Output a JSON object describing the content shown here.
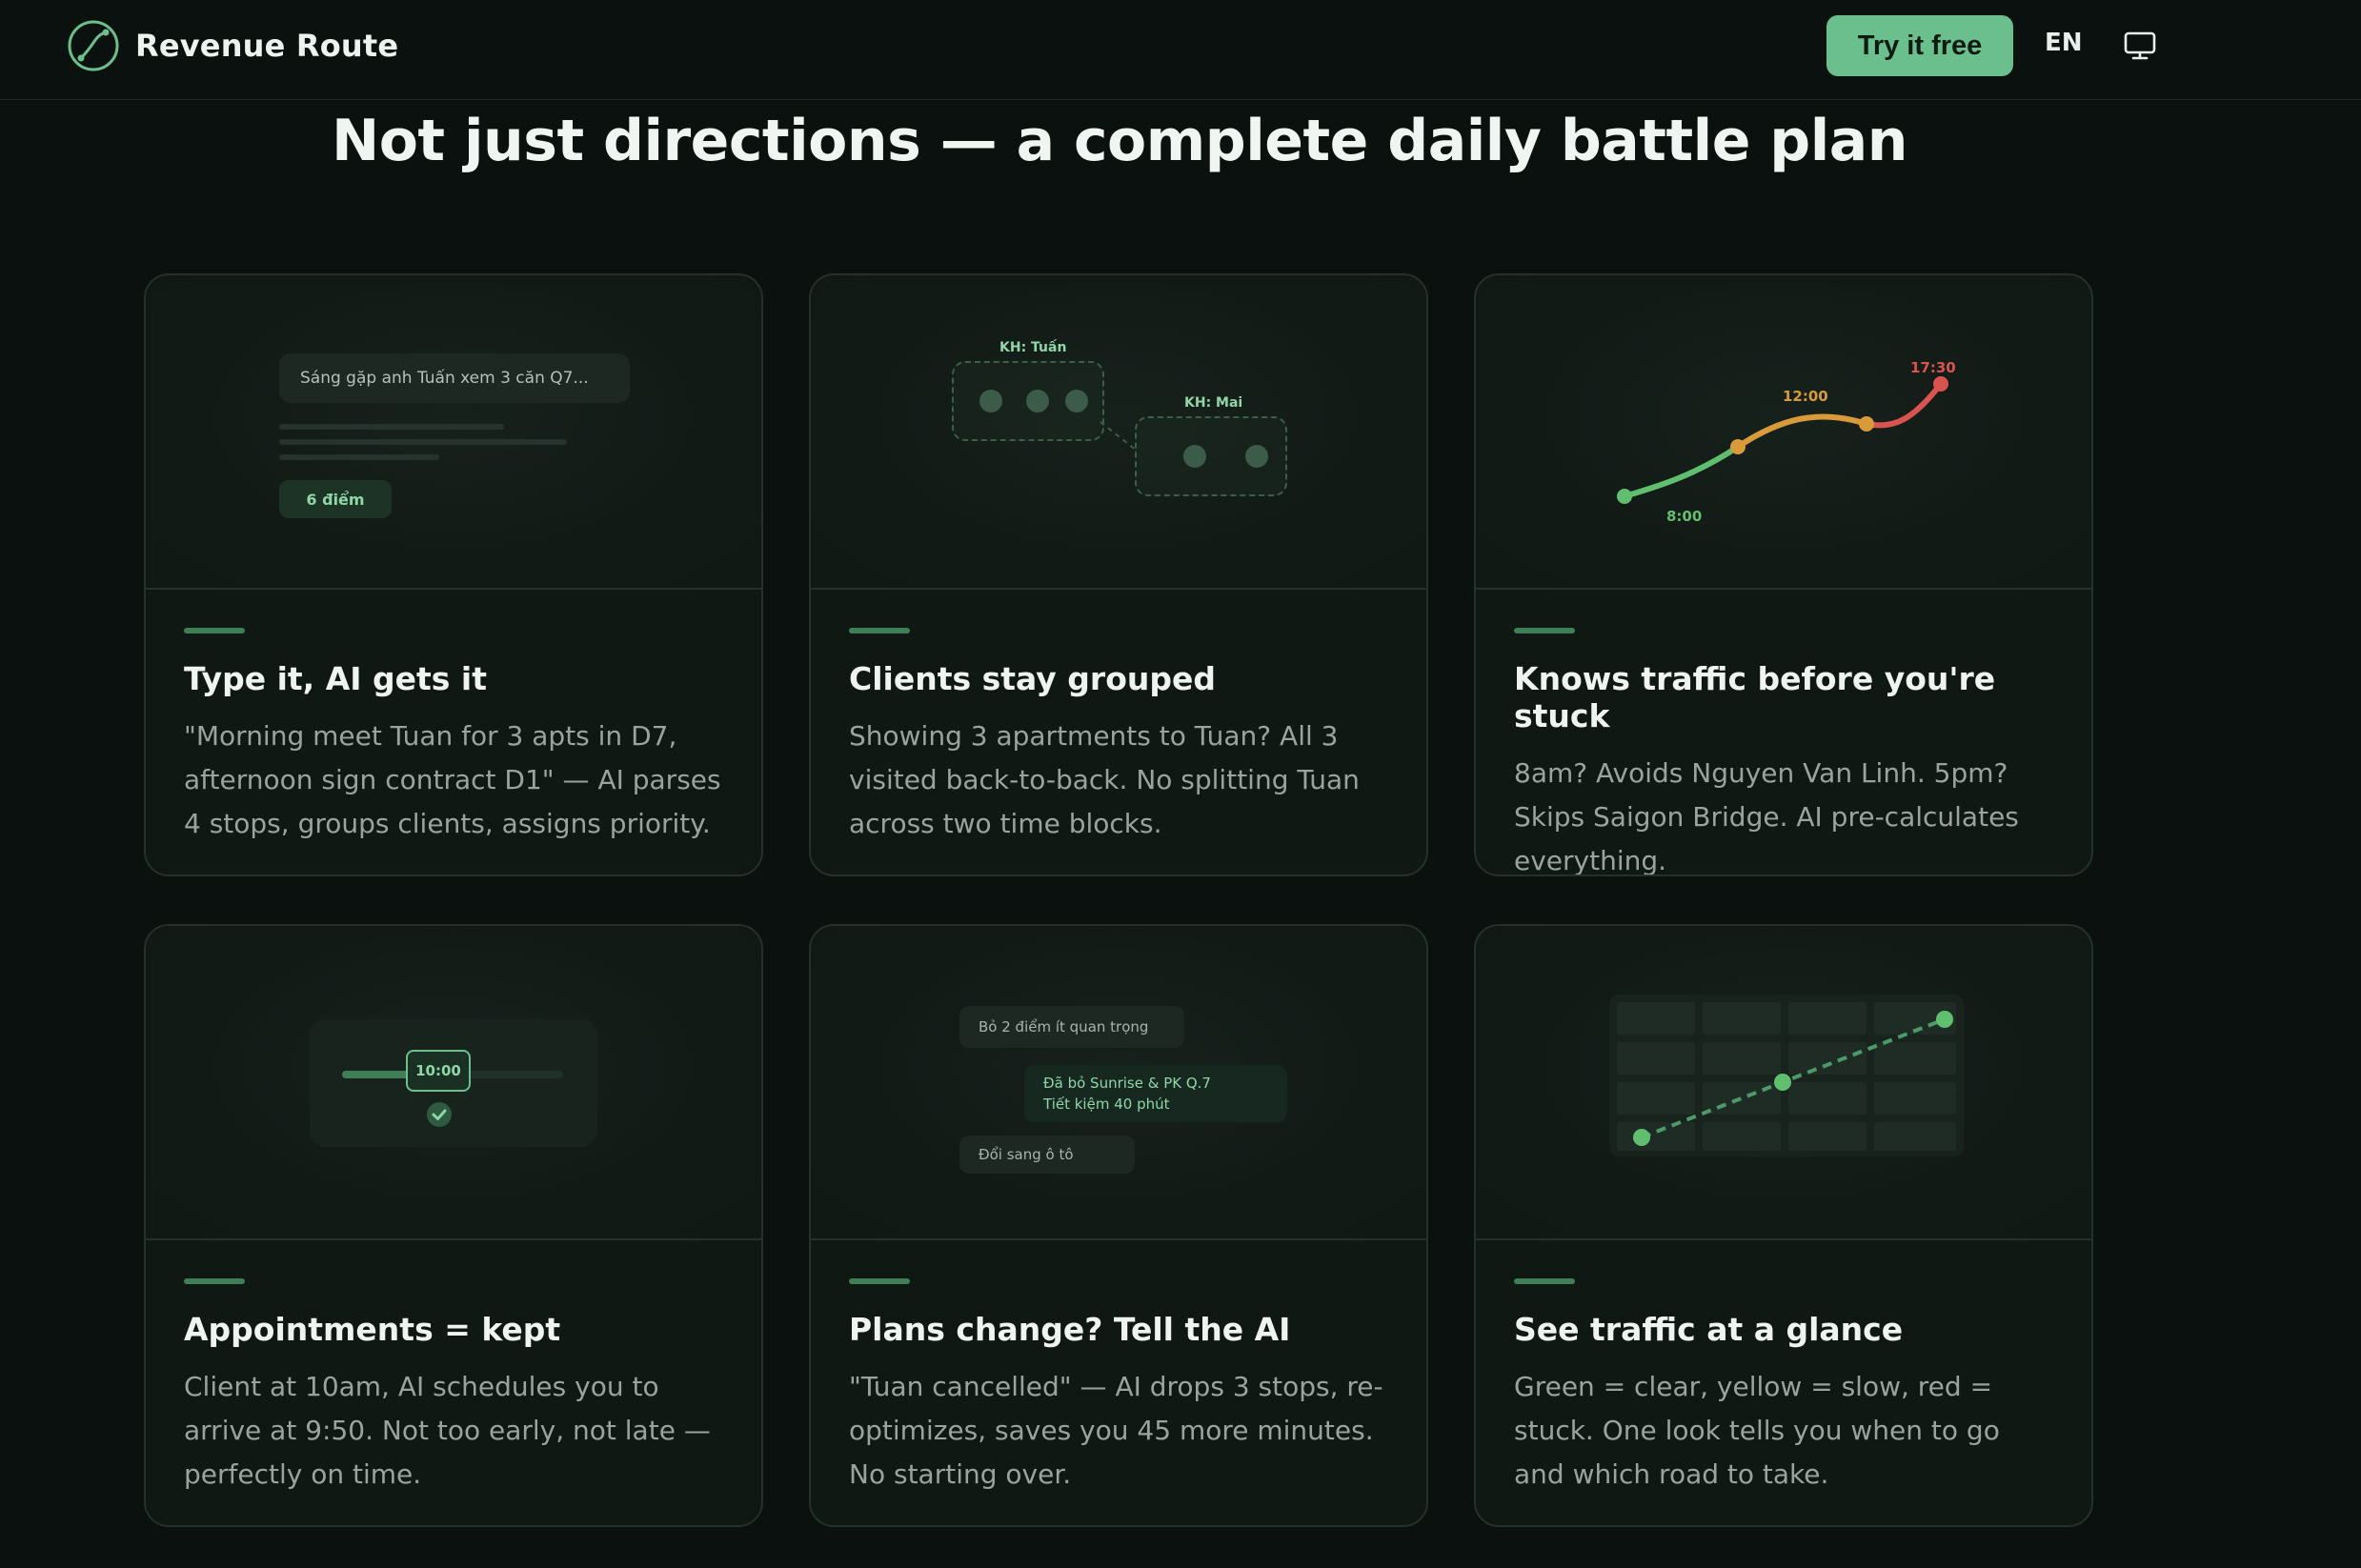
{
  "nav": {
    "brand": "Revenue Route",
    "cta_label": "Try it free",
    "language": "EN"
  },
  "headline": "Not just directions — a complete daily battle plan",
  "cards": [
    {
      "title": "Type it, AI gets it",
      "description": "\"Morning meet Tuan for 3 apts in D7, afternoon sign contract D1\" — AI parses 4 stops, groups clients, assigns priority.",
      "visual": {
        "input_text": "Sáng gặp anh Tuấn xem 3 căn Q7...",
        "badge": "6 điểm"
      }
    },
    {
      "title": "Clients stay grouped",
      "description": "Showing 3 apartments to Tuan? All 3 visited back-to-back. No splitting Tuan across two time blocks.",
      "visual": {
        "group_a": "KH: Tuấn",
        "group_b": "KH: Mai"
      }
    },
    {
      "title": "Knows traffic before you're stuck",
      "description": "8am? Avoids Nguyen Van Linh. 5pm? Skips Saigon Bridge. AI pre-calculates everything.",
      "visual": {
        "t_start": "8:00",
        "t_mid": "12:00",
        "t_end": "17:30"
      }
    },
    {
      "title": "Appointments = kept",
      "description": "Client at 10am, AI schedules you to arrive at 9:50. Not too early, not late — perfectly on time.",
      "visual": {
        "time": "10:00"
      }
    },
    {
      "title": "Plans change? Tell the AI",
      "description": "\"Tuan cancelled\" — AI drops 3 stops, re-optimizes, saves you 45 more minutes. No starting over.",
      "visual": {
        "user_msg_1": "Bỏ 2 điểm ít quan trọng",
        "ai_line_1": "Đã bỏ Sunrise & PK Q.7",
        "ai_line_2": "Tiết kiệm 40 phút",
        "user_msg_2": "Đổi sang ô tô"
      }
    },
    {
      "title": "See traffic at a glance",
      "description": "Green = clear, yellow = slow, red = stuck. One look tells you when to go and which road to take.",
      "visual": {}
    }
  ],
  "colors": {
    "accent": "#6bbf8c",
    "background": "#0b110e",
    "traffic_clear": "#5fbf6e",
    "traffic_slow": "#d99a3a",
    "traffic_stuck": "#d9534f"
  },
  "icons": [
    "route-logo-icon",
    "monitor-icon",
    "check-icon"
  ]
}
